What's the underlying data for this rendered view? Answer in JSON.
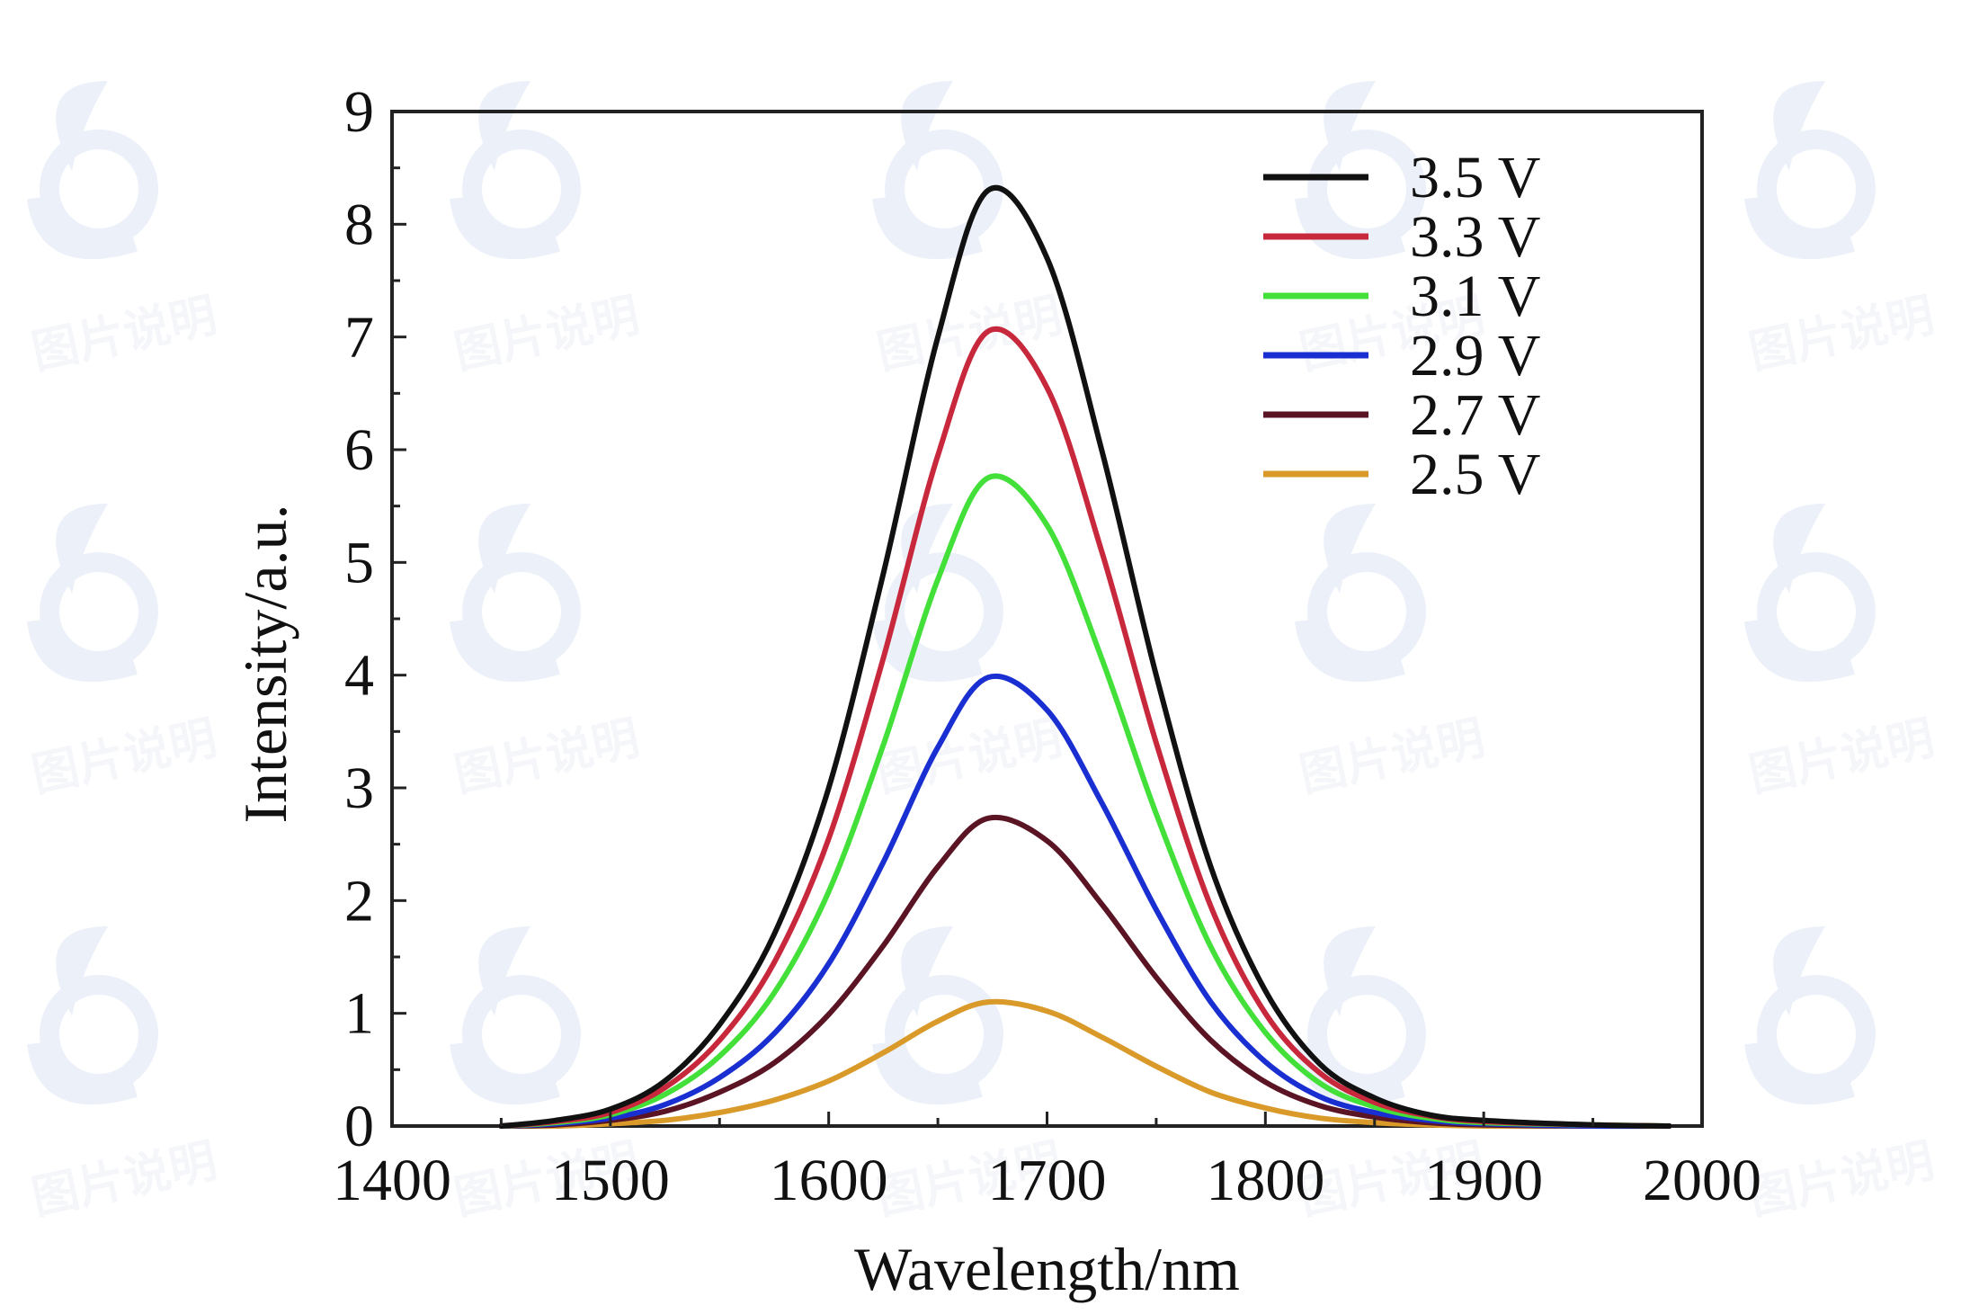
{
  "chart_data": {
    "type": "line",
    "title": "",
    "xlabel": "Wavelength/nm",
    "ylabel": "Intensity/a.u.",
    "xlim": [
      1400,
      2000
    ],
    "ylim": [
      0,
      9
    ],
    "x_ticks": [
      1400,
      1500,
      1600,
      1700,
      1800,
      1900,
      2000
    ],
    "y_ticks": [
      0,
      1,
      2,
      3,
      4,
      5,
      6,
      7,
      8,
      9
    ],
    "x_tick_labels": [
      "1400",
      "1500",
      "1600",
      "1700",
      "1800",
      "1900",
      "2000"
    ],
    "y_tick_labels": [
      "0",
      "1",
      "2",
      "3",
      "4",
      "5",
      "6",
      "7",
      "8",
      "9"
    ],
    "grid": false,
    "legend_position": "top-right",
    "series": [
      {
        "name": "3.5 V",
        "color": "#111111",
        "peak_x": 1673,
        "peak_y": 8.3,
        "x": [
          1450,
          1475,
          1500,
          1525,
          1550,
          1575,
          1600,
          1625,
          1650,
          1673,
          1700,
          1725,
          1750,
          1775,
          1800,
          1825,
          1850,
          1875,
          1900,
          1950,
          1985
        ],
        "y": [
          0.0,
          0.05,
          0.15,
          0.4,
          0.9,
          1.7,
          3.0,
          4.9,
          7.0,
          8.3,
          7.7,
          6.0,
          4.0,
          2.3,
          1.2,
          0.55,
          0.25,
          0.1,
          0.05,
          0.01,
          0.0
        ]
      },
      {
        "name": "3.3 V",
        "color": "#c8283c",
        "peak_x": 1673,
        "peak_y": 7.05,
        "x": [
          1450,
          1475,
          1500,
          1525,
          1550,
          1575,
          1600,
          1625,
          1650,
          1673,
          1700,
          1725,
          1750,
          1775,
          1800,
          1825,
          1850,
          1875,
          1900,
          1950,
          1985
        ],
        "y": [
          0.0,
          0.04,
          0.12,
          0.34,
          0.76,
          1.45,
          2.55,
          4.15,
          5.95,
          7.05,
          6.55,
          5.1,
          3.4,
          1.95,
          1.0,
          0.47,
          0.21,
          0.09,
          0.04,
          0.01,
          0.0
        ]
      },
      {
        "name": "3.1 V",
        "color": "#44e03a",
        "peak_x": 1673,
        "peak_y": 5.75,
        "x": [
          1450,
          1475,
          1500,
          1525,
          1550,
          1575,
          1600,
          1625,
          1650,
          1673,
          1700,
          1725,
          1750,
          1775,
          1800,
          1825,
          1850,
          1875,
          1900,
          1950,
          1985
        ],
        "y": [
          0.0,
          0.03,
          0.1,
          0.28,
          0.62,
          1.18,
          2.08,
          3.38,
          4.85,
          5.75,
          5.33,
          4.15,
          2.77,
          1.59,
          0.83,
          0.38,
          0.17,
          0.07,
          0.03,
          0.01,
          0.0
        ]
      },
      {
        "name": "2.9 V",
        "color": "#1a2fd1",
        "peak_x": 1673,
        "peak_y": 3.98,
        "x": [
          1450,
          1475,
          1500,
          1525,
          1550,
          1575,
          1600,
          1625,
          1650,
          1673,
          1700,
          1725,
          1750,
          1775,
          1800,
          1825,
          1850,
          1875,
          1900,
          1950,
          1985
        ],
        "y": [
          0.0,
          0.02,
          0.07,
          0.19,
          0.43,
          0.82,
          1.44,
          2.34,
          3.36,
          3.98,
          3.69,
          2.87,
          1.92,
          1.1,
          0.57,
          0.26,
          0.12,
          0.05,
          0.02,
          0.0,
          0.0
        ]
      },
      {
        "name": "2.7 V",
        "color": "#5a1424",
        "peak_x": 1673,
        "peak_y": 2.73,
        "x": [
          1450,
          1475,
          1500,
          1525,
          1550,
          1575,
          1600,
          1625,
          1650,
          1673,
          1700,
          1725,
          1750,
          1775,
          1800,
          1825,
          1850,
          1875,
          1900,
          1950,
          1985
        ],
        "y": [
          0.0,
          0.01,
          0.05,
          0.13,
          0.3,
          0.56,
          0.99,
          1.6,
          2.3,
          2.73,
          2.53,
          1.97,
          1.32,
          0.76,
          0.39,
          0.18,
          0.08,
          0.03,
          0.01,
          0.0,
          0.0
        ]
      },
      {
        "name": "2.5 V",
        "color": "#d99a2a",
        "peak_x": 1673,
        "peak_y": 1.1,
        "x": [
          1450,
          1475,
          1500,
          1525,
          1550,
          1575,
          1600,
          1625,
          1650,
          1673,
          1700,
          1725,
          1750,
          1775,
          1800,
          1825,
          1850,
          1875,
          1900,
          1950,
          1985
        ],
        "y": [
          0.0,
          0.0,
          0.02,
          0.05,
          0.12,
          0.23,
          0.4,
          0.65,
          0.93,
          1.1,
          1.02,
          0.79,
          0.53,
          0.3,
          0.16,
          0.07,
          0.03,
          0.01,
          0.0,
          0.0,
          0.0
        ]
      }
    ]
  },
  "watermark": {
    "text": "图片说明"
  }
}
